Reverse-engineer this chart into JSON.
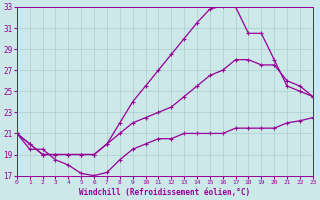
{
  "xlabel": "Windchill (Refroidissement éolien,°C)",
  "bg_color": "#cce8e8",
  "grid_color": "#aacfcf",
  "line_color": "#990099",
  "xlim": [
    0,
    23
  ],
  "ylim": [
    17,
    33
  ],
  "xticks": [
    0,
    1,
    2,
    3,
    4,
    5,
    6,
    7,
    8,
    9,
    10,
    11,
    12,
    13,
    14,
    15,
    16,
    17,
    18,
    19,
    20,
    21,
    22,
    23
  ],
  "yticks": [
    17,
    19,
    21,
    23,
    25,
    27,
    29,
    31,
    33
  ],
  "curve_top_x": [
    0,
    1,
    2,
    3,
    4,
    5,
    6,
    7,
    8,
    9,
    10,
    11,
    12,
    13,
    14,
    15,
    16,
    17,
    18,
    19,
    20,
    21,
    22,
    23
  ],
  "curve_top_y": [
    21,
    20,
    19,
    19,
    19,
    19,
    19,
    20,
    22,
    24,
    25.5,
    27,
    28.5,
    30.0,
    31.5,
    32.8,
    33.1,
    33.0,
    30.5,
    30.5,
    28.0,
    25.5,
    25.0,
    24.5
  ],
  "curve_mid_x": [
    0,
    1,
    2,
    3,
    4,
    5,
    6,
    7,
    8,
    9,
    10,
    11,
    12,
    13,
    14,
    15,
    16,
    17,
    18,
    19,
    20,
    21,
    22,
    23
  ],
  "curve_mid_y": [
    21,
    20,
    19,
    19,
    19,
    19,
    19,
    20,
    21,
    22,
    22.5,
    23,
    23.5,
    24.5,
    25.5,
    26.5,
    27.0,
    28.0,
    28.0,
    27.5,
    27.5,
    26.0,
    25.5,
    24.5
  ],
  "curve_bot_x": [
    0,
    1,
    2,
    3,
    4,
    5,
    6,
    7,
    8,
    9,
    10,
    11,
    12,
    13,
    14,
    15,
    16,
    17,
    18,
    19,
    20,
    21,
    22,
    23
  ],
  "curve_bot_y": [
    21,
    19.5,
    19.5,
    18.5,
    18.0,
    17.2,
    17.0,
    17.3,
    18.5,
    19.5,
    20.0,
    20.5,
    20.5,
    21.0,
    21.0,
    21.0,
    21.0,
    21.5,
    21.5,
    21.5,
    21.5,
    22.0,
    22.2,
    22.5
  ]
}
